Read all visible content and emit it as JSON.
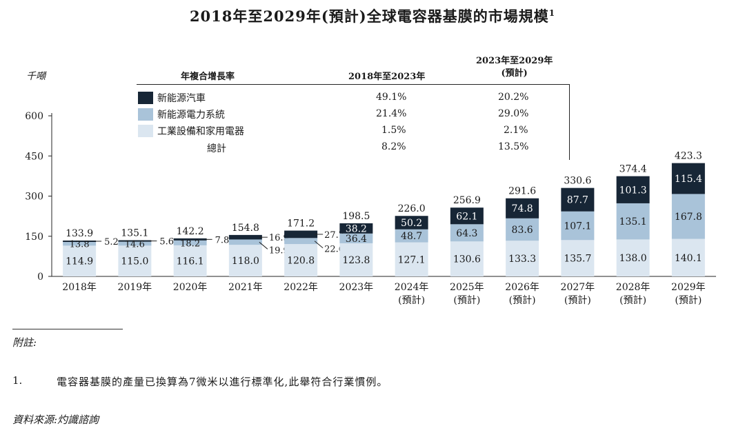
{
  "title": "2018年至2029年(預計)全球電容器基膜的市場規模",
  "title_sup": "1",
  "cagr_table": {
    "header_label": "年複合增長率",
    "col1": "2018年至2023年",
    "col2_line1": "2023年至2029年",
    "col2_line2": "(預計)",
    "rows": [
      {
        "label": "新能源汽車",
        "c1": "49.1%",
        "c2": "20.2%"
      },
      {
        "label": "新能源電力系統",
        "c1": "21.4%",
        "c2": "29.0%"
      },
      {
        "label": "工業設備和家用電器",
        "c1": "1.5%",
        "c2": "2.1%"
      },
      {
        "label": "總計",
        "c1": "8.2%",
        "c2": "13.5%"
      }
    ]
  },
  "colors": {
    "ev": "#172636",
    "power": "#a9c3d9",
    "industrial": "#dbe6f0"
  },
  "chart_data": {
    "type": "bar",
    "stacked": true,
    "ylabel": "千噸",
    "ylim": [
      0,
      600
    ],
    "yticks": [
      "0",
      "150",
      "300",
      "450",
      "600"
    ],
    "categories": [
      "2018年",
      "2019年",
      "2020年",
      "2021年",
      "2022年",
      "2023年",
      "2024年",
      "2025年",
      "2026年",
      "2027年",
      "2028年",
      "2029年"
    ],
    "category_sublabels": [
      "",
      "",
      "",
      "",
      "",
      "",
      "(預計)",
      "(預計)",
      "(預計)",
      "(預計)",
      "(預計)",
      "(預計)"
    ],
    "series": [
      {
        "name": "工業設備和家用電器",
        "values": [
          114.9,
          115.0,
          116.1,
          118.0,
          120.8,
          123.8,
          127.1,
          130.6,
          133.3,
          135.7,
          138.0,
          140.1
        ]
      },
      {
        "name": "新能源電力系統",
        "values": [
          13.8,
          14.6,
          18.2,
          19.9,
          22.6,
          36.4,
          48.7,
          64.3,
          83.6,
          107.1,
          135.1,
          167.8
        ]
      },
      {
        "name": "新能源汽車",
        "values": [
          5.2,
          5.6,
          7.8,
          16.9,
          27.7,
          38.2,
          50.2,
          62.1,
          74.8,
          87.7,
          101.3,
          115.4
        ]
      }
    ],
    "totals": [
      133.9,
      135.1,
      142.2,
      154.8,
      171.2,
      198.5,
      226.0,
      256.9,
      291.6,
      330.6,
      374.4,
      423.3
    ]
  },
  "notes": {
    "heading": "附註:",
    "num": "1.",
    "text": "電容器基膜的產量已換算為7微米以進行標準化,此舉符合行業慣例。",
    "source": "資料來源:灼識諮詢"
  }
}
